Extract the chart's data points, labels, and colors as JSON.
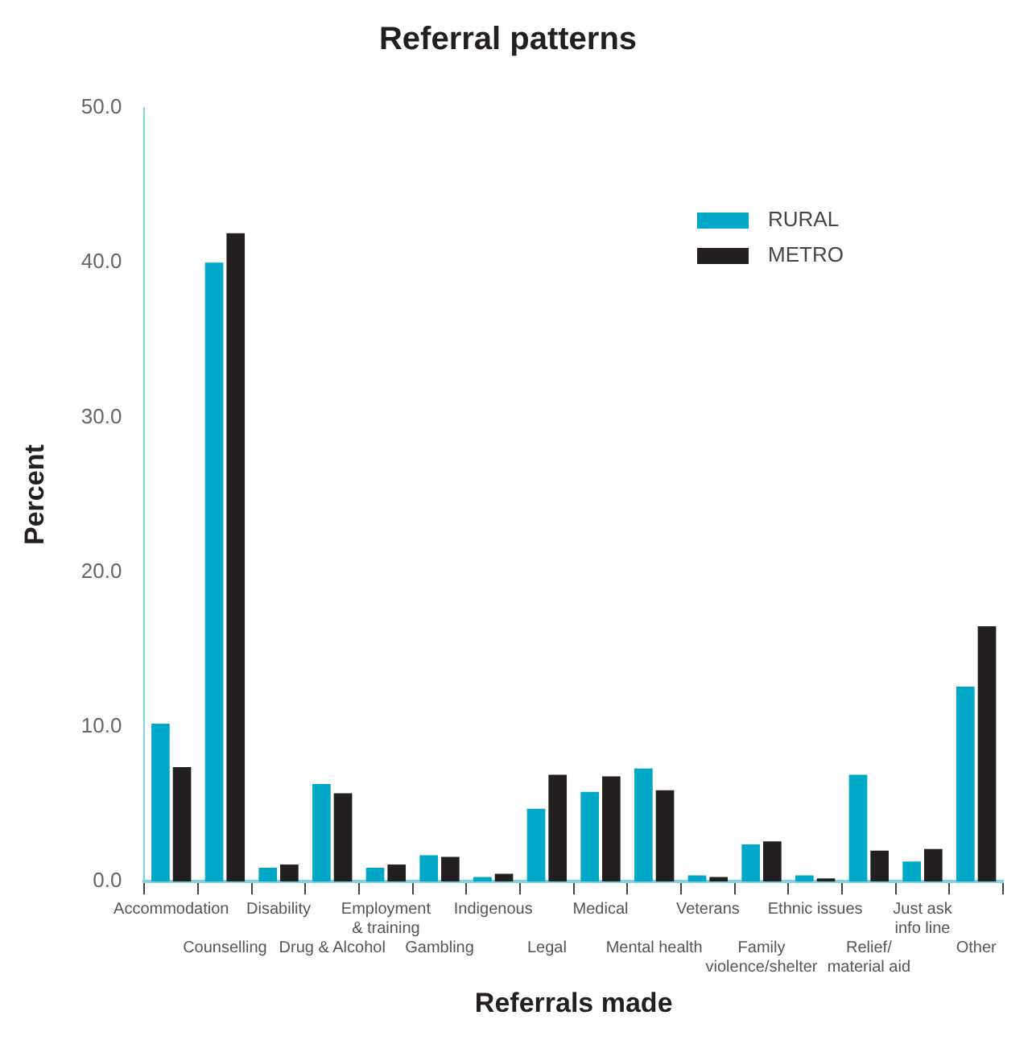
{
  "chart_data": {
    "type": "bar",
    "title": "Referral patterns",
    "xlabel": "Referrals made",
    "ylabel": "Percent",
    "categories": [
      "Accommodation",
      "Counselling",
      "Disability",
      "Drug & Alcohol",
      "Employment\n& training",
      "Gambling",
      "Indigenous",
      "Legal",
      "Medical",
      "Mental health",
      "Veterans",
      "Family\nviolence/shelter",
      "Ethnic issues",
      "Relief/\nmaterial aid",
      "Just ask\ninfo line",
      "Other"
    ],
    "series": [
      {
        "name": "RURAL",
        "color": "#00a8c8",
        "values": [
          10.2,
          40.0,
          0.9,
          6.3,
          0.9,
          1.7,
          0.3,
          4.7,
          5.8,
          7.3,
          0.4,
          2.4,
          0.4,
          6.9,
          1.3,
          12.6
        ]
      },
      {
        "name": "METRO",
        "color": "#231f20",
        "values": [
          7.4,
          41.9,
          1.1,
          5.7,
          1.1,
          1.6,
          0.5,
          6.9,
          6.8,
          5.9,
          0.3,
          2.6,
          0.2,
          2.0,
          2.1,
          16.5
        ]
      }
    ],
    "ylim": [
      0,
      50
    ],
    "yticks": [
      {
        "value": 0,
        "label": "0.0"
      },
      {
        "value": 10,
        "label": "10.0"
      },
      {
        "value": 20,
        "label": "20.0"
      },
      {
        "value": 30,
        "label": "30.0"
      },
      {
        "value": 40,
        "label": "40.0"
      },
      {
        "value": 50,
        "label": "50.0"
      }
    ],
    "grid": false,
    "legend": "top right"
  }
}
